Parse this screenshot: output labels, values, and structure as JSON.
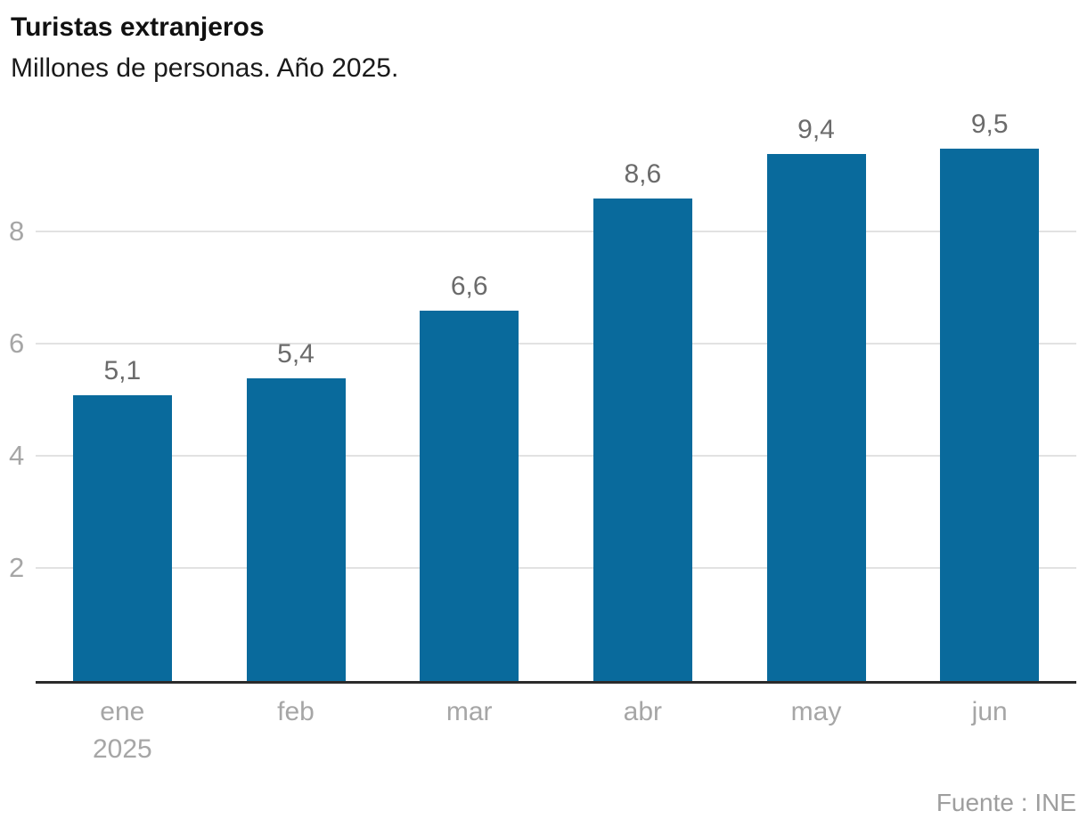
{
  "chart": {
    "title": "Turistas extranjeros",
    "subtitle": "Millones de personas. Año 2025.",
    "source": "Fuente : INE"
  },
  "chart_data": {
    "type": "bar",
    "title": "Turistas extranjeros",
    "subtitle": "Millones de personas. Año 2025.",
    "xlabel": "",
    "ylabel": "Millones de personas",
    "categories": [
      "ene",
      "feb",
      "mar",
      "abr",
      "may",
      "jun"
    ],
    "category_sublabels": [
      "2025",
      "",
      "",
      "",
      "",
      ""
    ],
    "values": [
      5.1,
      5.4,
      6.6,
      8.6,
      9.4,
      9.5
    ],
    "value_labels": [
      "5,1",
      "5,4",
      "6,6",
      "8,6",
      "9,4",
      "9,5"
    ],
    "yticks": [
      2,
      4,
      6,
      8
    ],
    "ylim": [
      0,
      10.4
    ],
    "grid": "horizontal",
    "legend": "none",
    "bar_color": "#096a9c",
    "grid_color": "#e2e2e2",
    "axis_color": "#2b2b2b",
    "tick_label_color": "#a6a6a6",
    "value_label_color": "#6b6b6b",
    "source": "Fuente : INE"
  }
}
